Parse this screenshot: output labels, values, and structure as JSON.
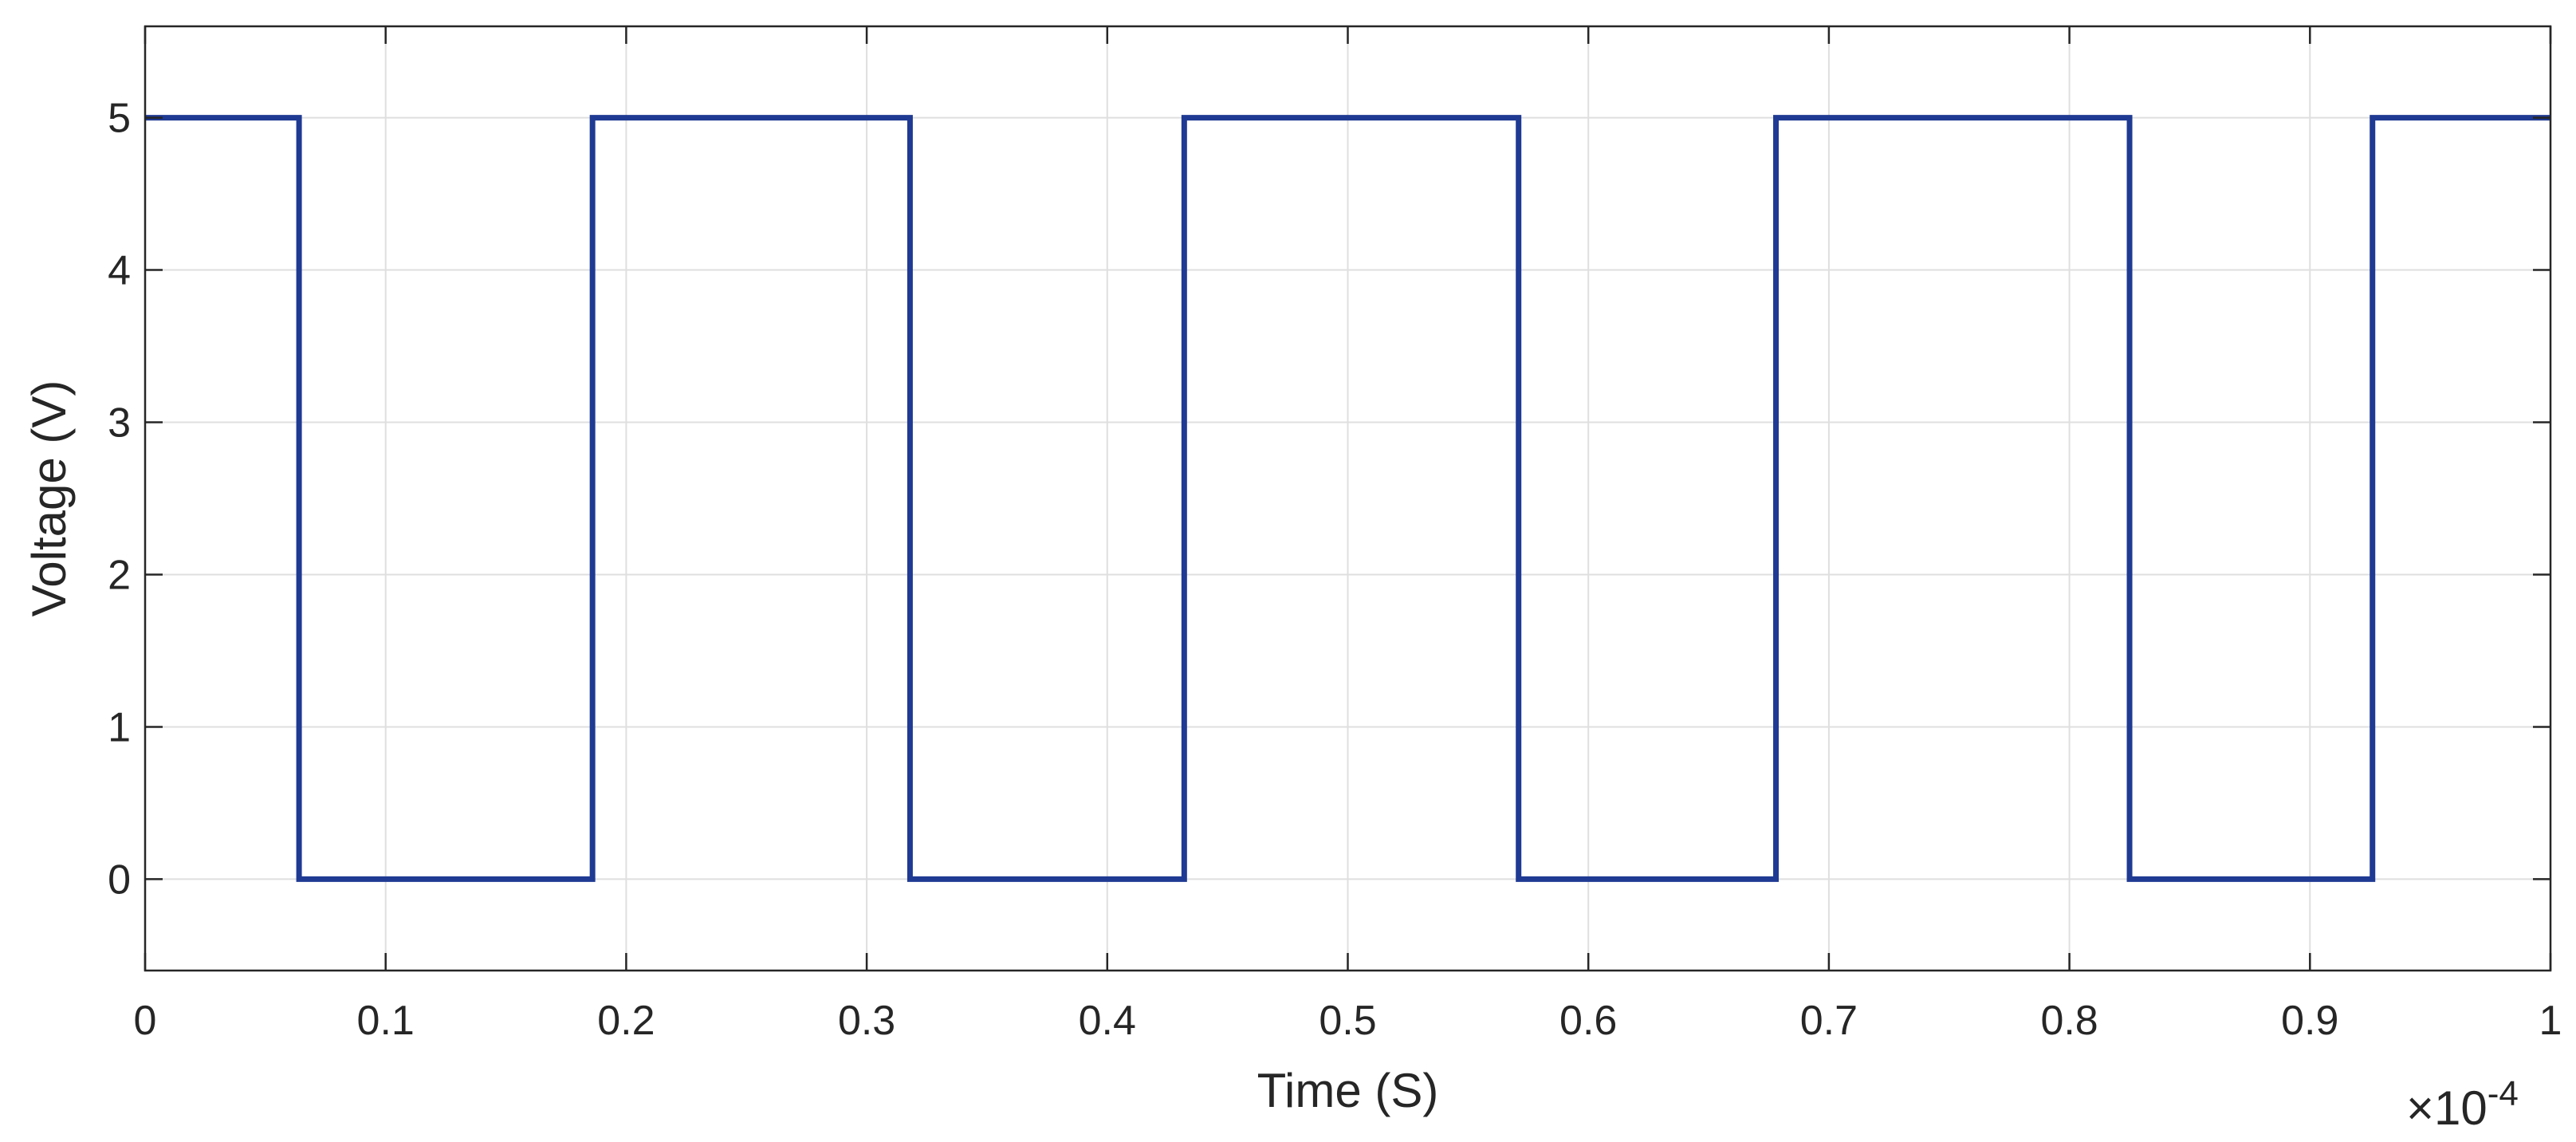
{
  "chart_data": {
    "type": "line",
    "title": "",
    "xlabel": "Time (S)",
    "ylabel": "Voltage (V)",
    "x_multiplier_label": "×10",
    "x_multiplier_exponent": "-4",
    "xlim": [
      0,
      1
    ],
    "ylim": [
      -0.6,
      5.6
    ],
    "x_ticks": [
      0,
      0.1,
      0.2,
      0.3,
      0.4,
      0.5,
      0.6,
      0.7,
      0.8,
      0.9,
      1
    ],
    "x_tick_labels": [
      "0",
      "0.1",
      "0.2",
      "0.3",
      "0.4",
      "0.5",
      "0.6",
      "0.7",
      "0.8",
      "0.9",
      "1"
    ],
    "y_ticks": [
      0,
      1,
      2,
      3,
      4,
      5
    ],
    "y_tick_labels": [
      "0",
      "1",
      "2",
      "3",
      "4",
      "5"
    ],
    "grid": true,
    "series": [
      {
        "color": "#1f3a93",
        "step": true,
        "x": [
          0,
          0.064,
          0.064,
          0.186,
          0.186,
          0.318,
          0.318,
          0.432,
          0.432,
          0.571,
          0.571,
          0.678,
          0.678,
          0.825,
          0.825,
          0.926,
          0.926,
          1.0
        ],
        "y": [
          5,
          5,
          0,
          0,
          5,
          5,
          0,
          0,
          5,
          5,
          0,
          0,
          5,
          5,
          0,
          0,
          5,
          5
        ]
      }
    ]
  }
}
